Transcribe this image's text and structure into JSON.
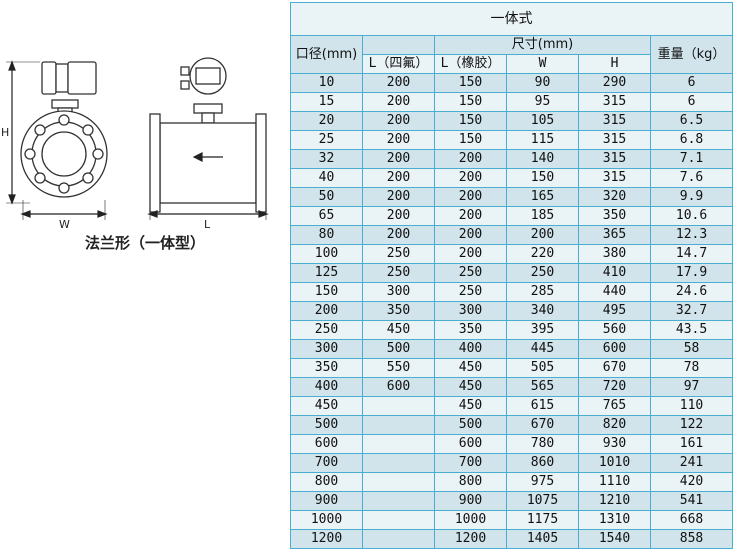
{
  "diagram": {
    "labels": {
      "h": "H",
      "w": "W",
      "l": "L"
    },
    "caption": "法兰形（一体型）"
  },
  "table": {
    "title": "一体式",
    "headers": {
      "diameter": "口径(mm)",
      "dimensions": "尺寸(mm)",
      "weight": "重量（kg）",
      "l_ptfe": "L（四氟）",
      "l_rubber": "L（橡胶）",
      "w": "W",
      "h": "H"
    },
    "rows": [
      [
        "10",
        "200",
        "150",
        "90",
        "290",
        "6"
      ],
      [
        "15",
        "200",
        "150",
        "95",
        "315",
        "6"
      ],
      [
        "20",
        "200",
        "150",
        "105",
        "315",
        "6.5"
      ],
      [
        "25",
        "200",
        "150",
        "115",
        "315",
        "6.8"
      ],
      [
        "32",
        "200",
        "200",
        "140",
        "315",
        "7.1"
      ],
      [
        "40",
        "200",
        "200",
        "150",
        "315",
        "7.6"
      ],
      [
        "50",
        "200",
        "200",
        "165",
        "320",
        "9.9"
      ],
      [
        "65",
        "200",
        "200",
        "185",
        "350",
        "10.6"
      ],
      [
        "80",
        "200",
        "200",
        "200",
        "365",
        "12.3"
      ],
      [
        "100",
        "250",
        "200",
        "220",
        "380",
        "14.7"
      ],
      [
        "125",
        "250",
        "250",
        "250",
        "410",
        "17.9"
      ],
      [
        "150",
        "300",
        "250",
        "285",
        "440",
        "24.6"
      ],
      [
        "200",
        "350",
        "300",
        "340",
        "495",
        "32.7"
      ],
      [
        "250",
        "450",
        "350",
        "395",
        "560",
        "43.5"
      ],
      [
        "300",
        "500",
        "400",
        "445",
        "600",
        "58"
      ],
      [
        "350",
        "550",
        "450",
        "505",
        "670",
        "78"
      ],
      [
        "400",
        "600",
        "450",
        "565",
        "720",
        "97"
      ],
      [
        "450",
        "",
        "450",
        "615",
        "765",
        "110"
      ],
      [
        "500",
        "",
        "500",
        "670",
        "820",
        "122"
      ],
      [
        "600",
        "",
        "600",
        "780",
        "930",
        "161"
      ],
      [
        "700",
        "",
        "700",
        "860",
        "1010",
        "241"
      ],
      [
        "800",
        "",
        "800",
        "975",
        "1110",
        "420"
      ],
      [
        "900",
        "",
        "900",
        "1075",
        "1210",
        "541"
      ],
      [
        "1000",
        "",
        "1000",
        "1175",
        "1310",
        "668"
      ],
      [
        "1200",
        "",
        "1200",
        "1405",
        "1540",
        "858"
      ]
    ]
  }
}
